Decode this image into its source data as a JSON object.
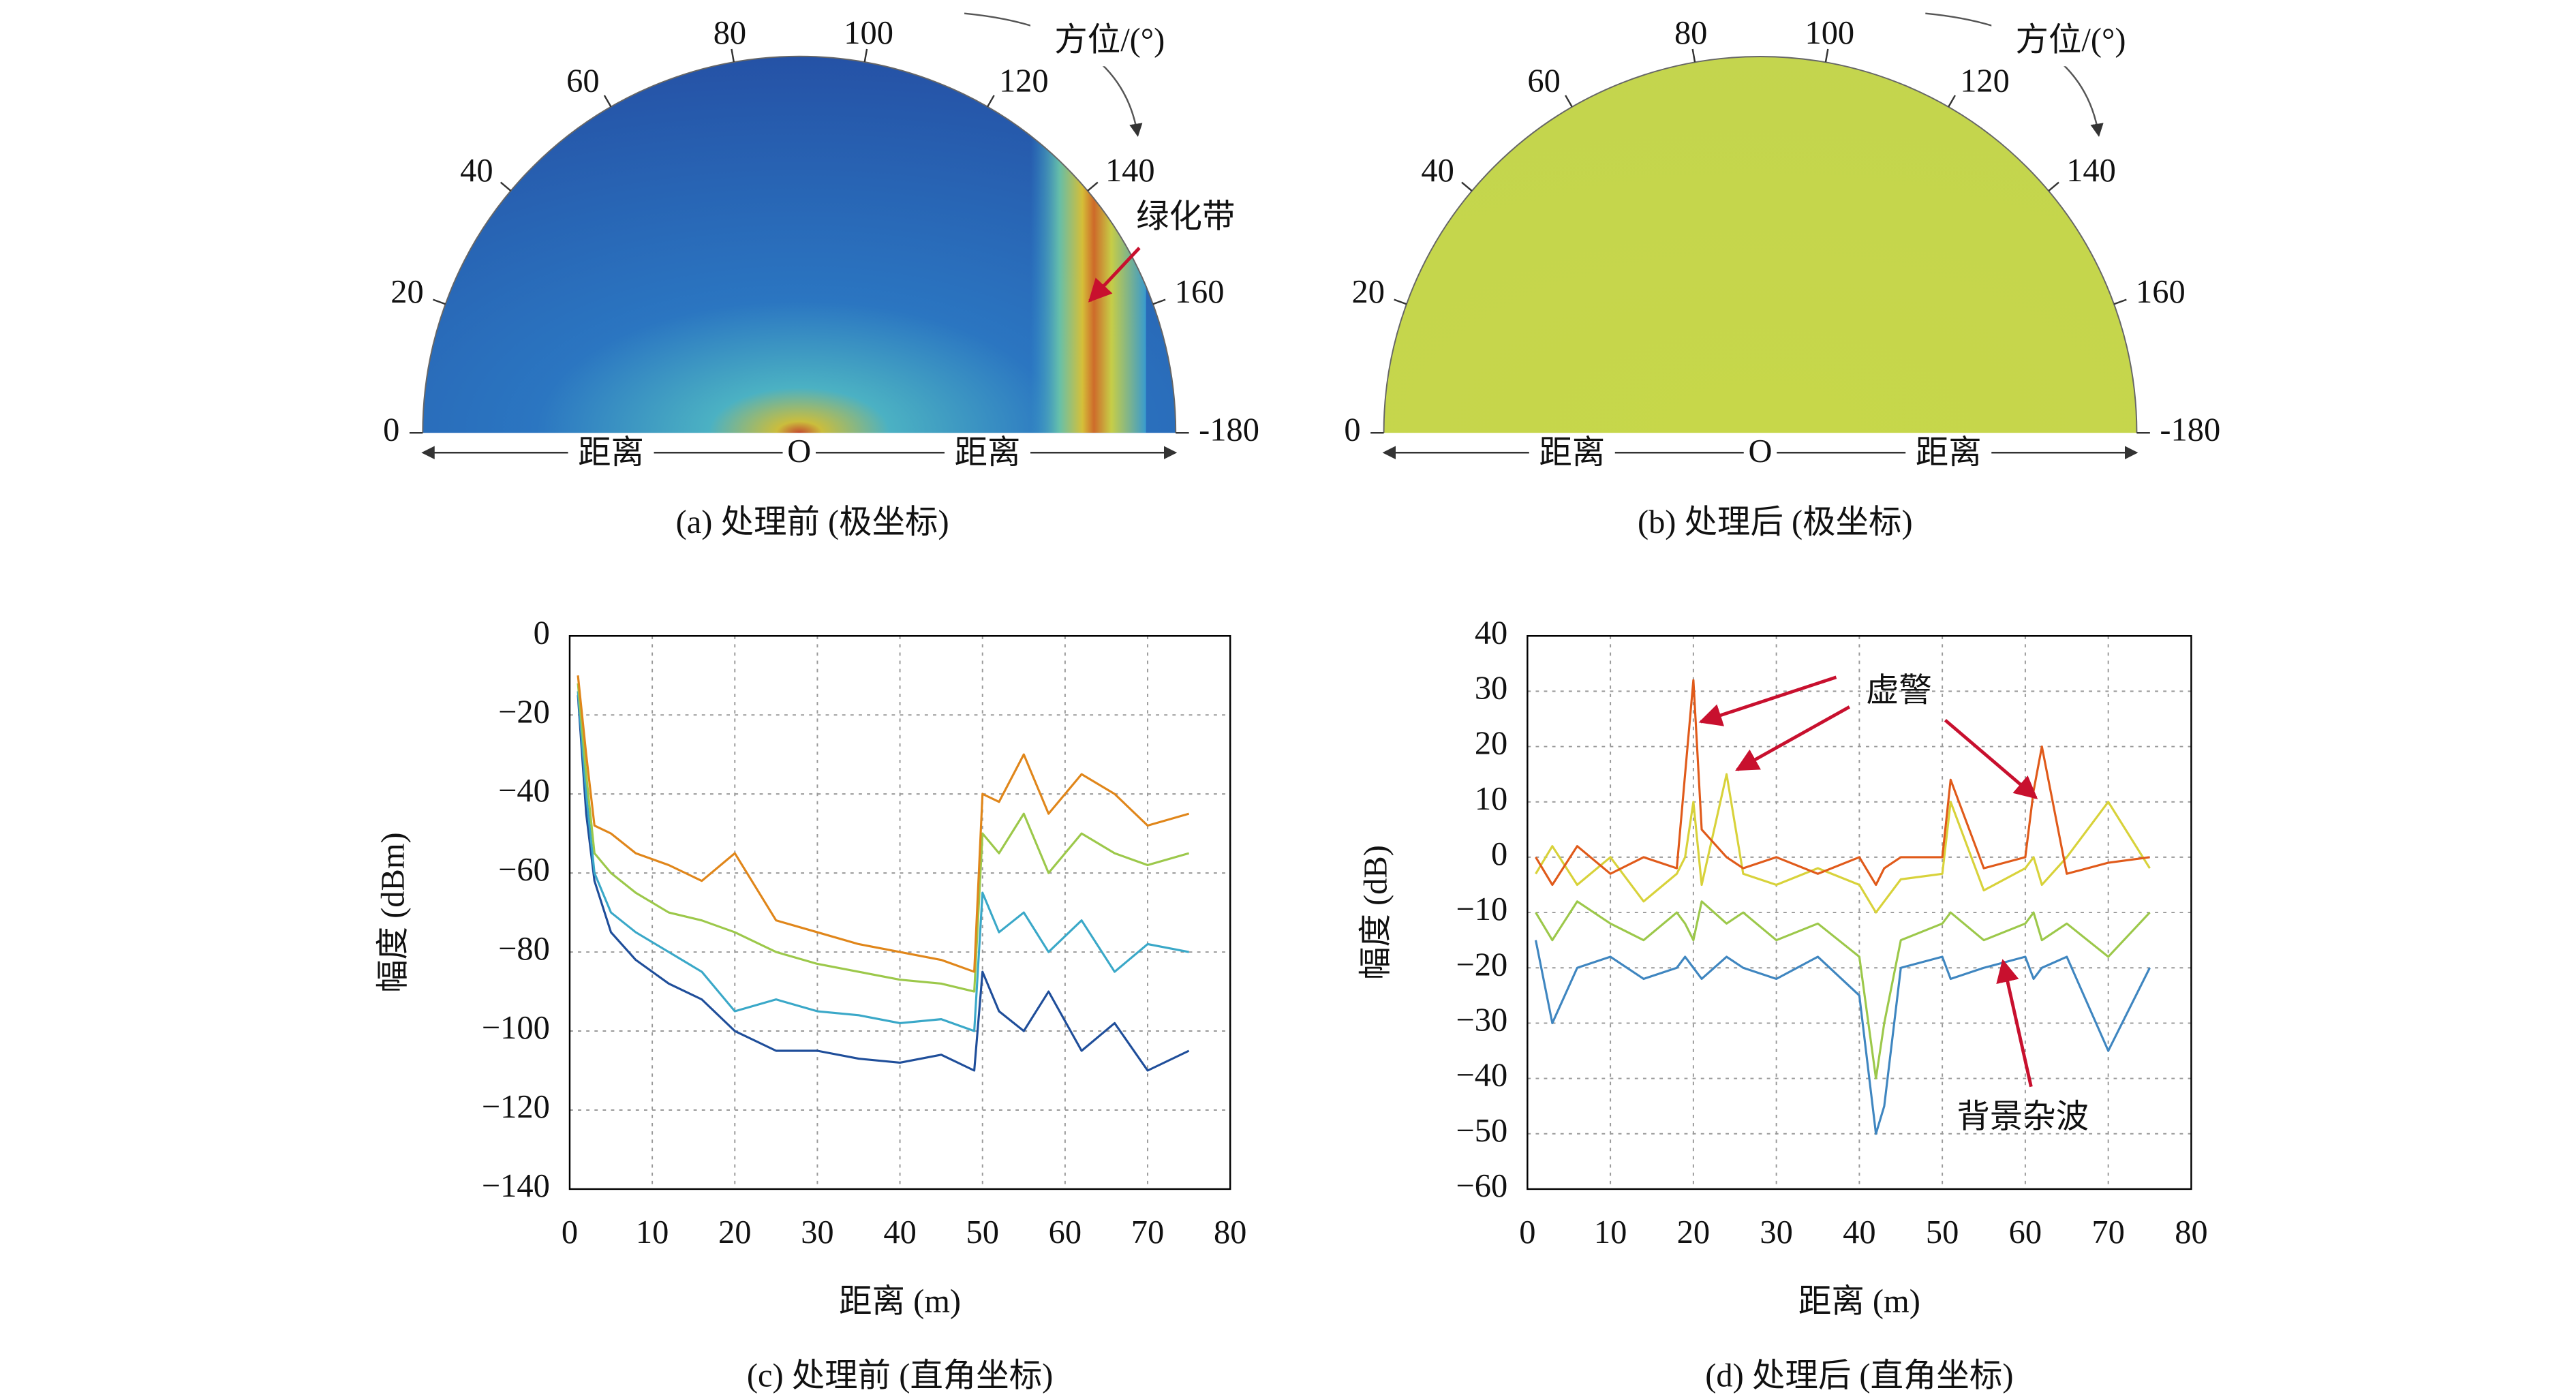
{
  "chart_data": [
    {
      "type": "polar",
      "caption": "(a) 处理前 (极坐标)",
      "theta_label": "方位/(°)",
      "range_label": "距离",
      "center_label": "O",
      "color": "#2552a6",
      "thetaticks": [
        0,
        20,
        40,
        60,
        80,
        100,
        120,
        140,
        160,
        -180
      ],
      "annotations": [
        {
          "text": "绿化带",
          "color": "#c8102e"
        }
      ]
    },
    {
      "type": "polar",
      "caption": "(b) 处理后 (极坐标)",
      "theta_label": "方位/(°)",
      "range_label": "距离",
      "center_label": "O",
      "color": "#c6d64a",
      "thetaticks": [
        0,
        20,
        40,
        60,
        80,
        100,
        120,
        140,
        160,
        -180
      ],
      "annotations": []
    },
    {
      "type": "line",
      "caption": "(c) 处理前 (直角坐标)",
      "xlabel": "距离 (m)",
      "ylabel": "幅度 (dBm)",
      "grid": true,
      "xlim": [
        0,
        80
      ],
      "xticks": [
        0,
        10,
        20,
        30,
        40,
        50,
        60,
        70,
        80
      ],
      "ylim": [
        -140,
        0
      ],
      "yticks": [
        {
          "value": -140,
          "label": "−140"
        },
        {
          "value": -120,
          "label": "−120"
        },
        {
          "value": -100,
          "label": "−100"
        },
        {
          "value": -80,
          "label": "−80"
        },
        {
          "value": -60,
          "label": "−60"
        },
        {
          "value": -40,
          "label": "−40"
        },
        {
          "value": -20,
          "label": "−20"
        },
        0
      ],
      "x": [
        1,
        2,
        3,
        5,
        8,
        12,
        16,
        20,
        25,
        30,
        35,
        40,
        45,
        49,
        50,
        52,
        55,
        58,
        62,
        66,
        70,
        75
      ],
      "series": [
        {
          "color": "#1f4e9a",
          "values": [
            -15,
            -45,
            -62,
            -75,
            -82,
            -88,
            -92,
            -100,
            -105,
            -105,
            -107,
            -108,
            -106,
            -110,
            -85,
            -95,
            -100,
            -90,
            -105,
            -98,
            -110,
            -105
          ]
        },
        {
          "color": "#3aa8c8",
          "values": [
            -14,
            -40,
            -60,
            -70,
            -75,
            -80,
            -85,
            -95,
            -92,
            -95,
            -96,
            -98,
            -97,
            -100,
            -65,
            -75,
            -70,
            -80,
            -72,
            -85,
            -78,
            -80
          ]
        },
        {
          "color": "#9cc84a",
          "values": [
            -12,
            -35,
            -55,
            -60,
            -65,
            -70,
            -72,
            -75,
            -80,
            -83,
            -85,
            -87,
            -88,
            -90,
            -50,
            -55,
            -45,
            -60,
            -50,
            -55,
            -58,
            -55
          ]
        },
        {
          "color": "#e0861a",
          "values": [
            -10,
            -30,
            -48,
            -50,
            -55,
            -58,
            -62,
            -55,
            -72,
            -75,
            -78,
            -80,
            -82,
            -85,
            -40,
            -42,
            -30,
            -45,
            -35,
            -40,
            -48,
            -45
          ]
        }
      ],
      "annotations": []
    },
    {
      "type": "line",
      "caption": "(d) 处理后 (直角坐标)",
      "xlabel": "距离 (m)",
      "ylabel": "幅度 (dB)",
      "grid": true,
      "xlim": [
        0,
        80
      ],
      "xticks": [
        0,
        10,
        20,
        30,
        40,
        50,
        60,
        70,
        80
      ],
      "ylim": [
        -60,
        40
      ],
      "yticks": [
        {
          "value": -60,
          "label": "−60"
        },
        {
          "value": -50,
          "label": "−50"
        },
        {
          "value": -40,
          "label": "−40"
        },
        {
          "value": -30,
          "label": "−30"
        },
        {
          "value": -20,
          "label": "−20"
        },
        {
          "value": -10,
          "label": "−10"
        },
        0,
        10,
        20,
        30,
        40
      ],
      "x": [
        1,
        3,
        6,
        10,
        14,
        18,
        19,
        20,
        21,
        24,
        26,
        30,
        35,
        40,
        42,
        43,
        45,
        50,
        51,
        55,
        60,
        61,
        62,
        65,
        70,
        75
      ],
      "series": [
        {
          "color": "#3f86c0",
          "values": [
            -15,
            -30,
            -20,
            -18,
            -22,
            -20,
            -18,
            -20,
            -22,
            -18,
            -20,
            -22,
            -18,
            -25,
            -50,
            -45,
            -20,
            -18,
            -22,
            -20,
            -18,
            -22,
            -20,
            -18,
            -35,
            -20
          ]
        },
        {
          "color": "#9cc84a",
          "values": [
            -10,
            -15,
            -8,
            -12,
            -15,
            -10,
            -12,
            -15,
            -8,
            -12,
            -10,
            -15,
            -12,
            -18,
            -40,
            -30,
            -15,
            -12,
            -10,
            -15,
            -12,
            -10,
            -15,
            -12,
            -18,
            -10
          ]
        },
        {
          "color": "#d8d23a",
          "values": [
            -3,
            2,
            -5,
            0,
            -8,
            -3,
            0,
            10,
            -5,
            15,
            -3,
            -5,
            -2,
            -5,
            -10,
            -8,
            -4,
            -3,
            10,
            -6,
            -2,
            0,
            -5,
            0,
            10,
            -2
          ]
        },
        {
          "color": "#e05a1a",
          "values": [
            0,
            -5,
            2,
            -3,
            0,
            -2,
            15,
            32,
            5,
            0,
            -2,
            0,
            -3,
            0,
            -5,
            -2,
            0,
            0,
            14,
            -2,
            0,
            12,
            20,
            -3,
            -1,
            0
          ]
        }
      ],
      "annotations": [
        {
          "text": "虚警",
          "color": "#c8102e"
        },
        {
          "text": "背景杂波",
          "color": "#c8102e"
        }
      ]
    }
  ]
}
